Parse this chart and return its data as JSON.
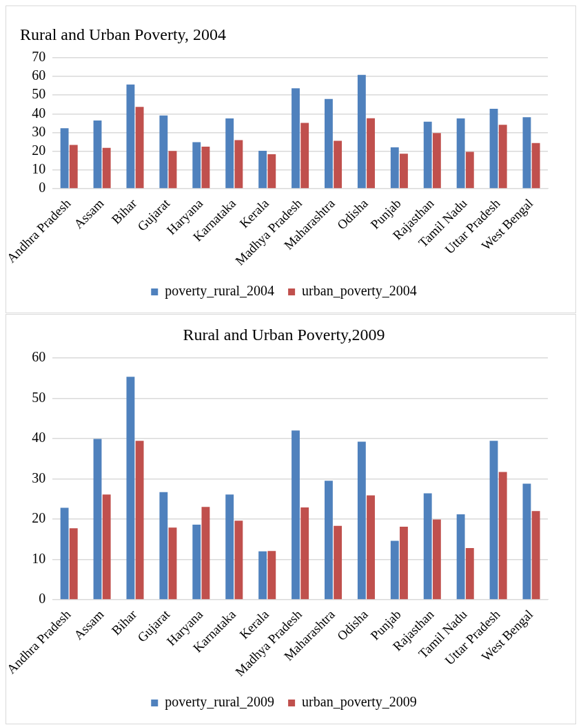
{
  "chart_data": [
    {
      "type": "bar",
      "title": "Rural and Urban Poverty, 2004",
      "categories": [
        "Andhra Pradesh",
        "Assam",
        "Bihar",
        "Gujarat",
        "Haryana",
        "Karnataka",
        "Kerala",
        "Madhya Pradesh",
        "Maharashtra",
        "Odisha",
        "Punjab",
        "Rajasthan",
        "Tamil Nadu",
        "Uttar Pradesh",
        "West Bengal"
      ],
      "series": [
        {
          "name": "poverty_rural_2004",
          "color": "#4f81bd",
          "values": [
            32.3,
            36.4,
            55.7,
            39.1,
            24.8,
            37.5,
            20.2,
            53.6,
            47.9,
            60.8,
            22.1,
            35.8,
            37.5,
            42.7,
            38.2
          ]
        },
        {
          "name": "urban_poverty_2004",
          "color": "#c0504d",
          "values": [
            23.4,
            21.8,
            43.7,
            20.1,
            22.4,
            25.9,
            18.4,
            35.1,
            25.6,
            37.6,
            18.7,
            29.7,
            19.7,
            34.1,
            24.4
          ]
        }
      ],
      "ylim": [
        0,
        70
      ],
      "yticks": [
        0,
        10,
        20,
        30,
        40,
        50,
        60,
        70
      ],
      "grid": "y",
      "legend": "bottom"
    },
    {
      "type": "bar",
      "title": "Rural and Urban Poverty,2009",
      "categories": [
        "Andhra Pradesh",
        "Assam",
        "Bihar",
        "Gujarat",
        "Haryana",
        "Karnataka",
        "Kerala",
        "Madhya Pradesh",
        "Maharashtra",
        "Odisha",
        "Punjab",
        "Rajasthan",
        "Tamil Nadu",
        "Uttar Pradesh",
        "West Bengal"
      ],
      "series": [
        {
          "name": "poverty_rural_2009",
          "color": "#4f81bd",
          "values": [
            22.8,
            39.9,
            55.3,
            26.7,
            18.6,
            26.1,
            12.0,
            42.0,
            29.5,
            39.2,
            14.6,
            26.4,
            21.2,
            39.4,
            28.8
          ]
        },
        {
          "name": "urban_poverty_2009",
          "color": "#c0504d",
          "values": [
            17.7,
            26.1,
            39.4,
            17.9,
            23.0,
            19.6,
            12.1,
            22.9,
            18.3,
            25.9,
            18.1,
            19.9,
            12.8,
            31.7,
            22.0
          ]
        }
      ],
      "ylim": [
        0,
        60
      ],
      "yticks": [
        0,
        10,
        20,
        30,
        40,
        50,
        60
      ],
      "grid": "y",
      "legend": "bottom"
    }
  ]
}
